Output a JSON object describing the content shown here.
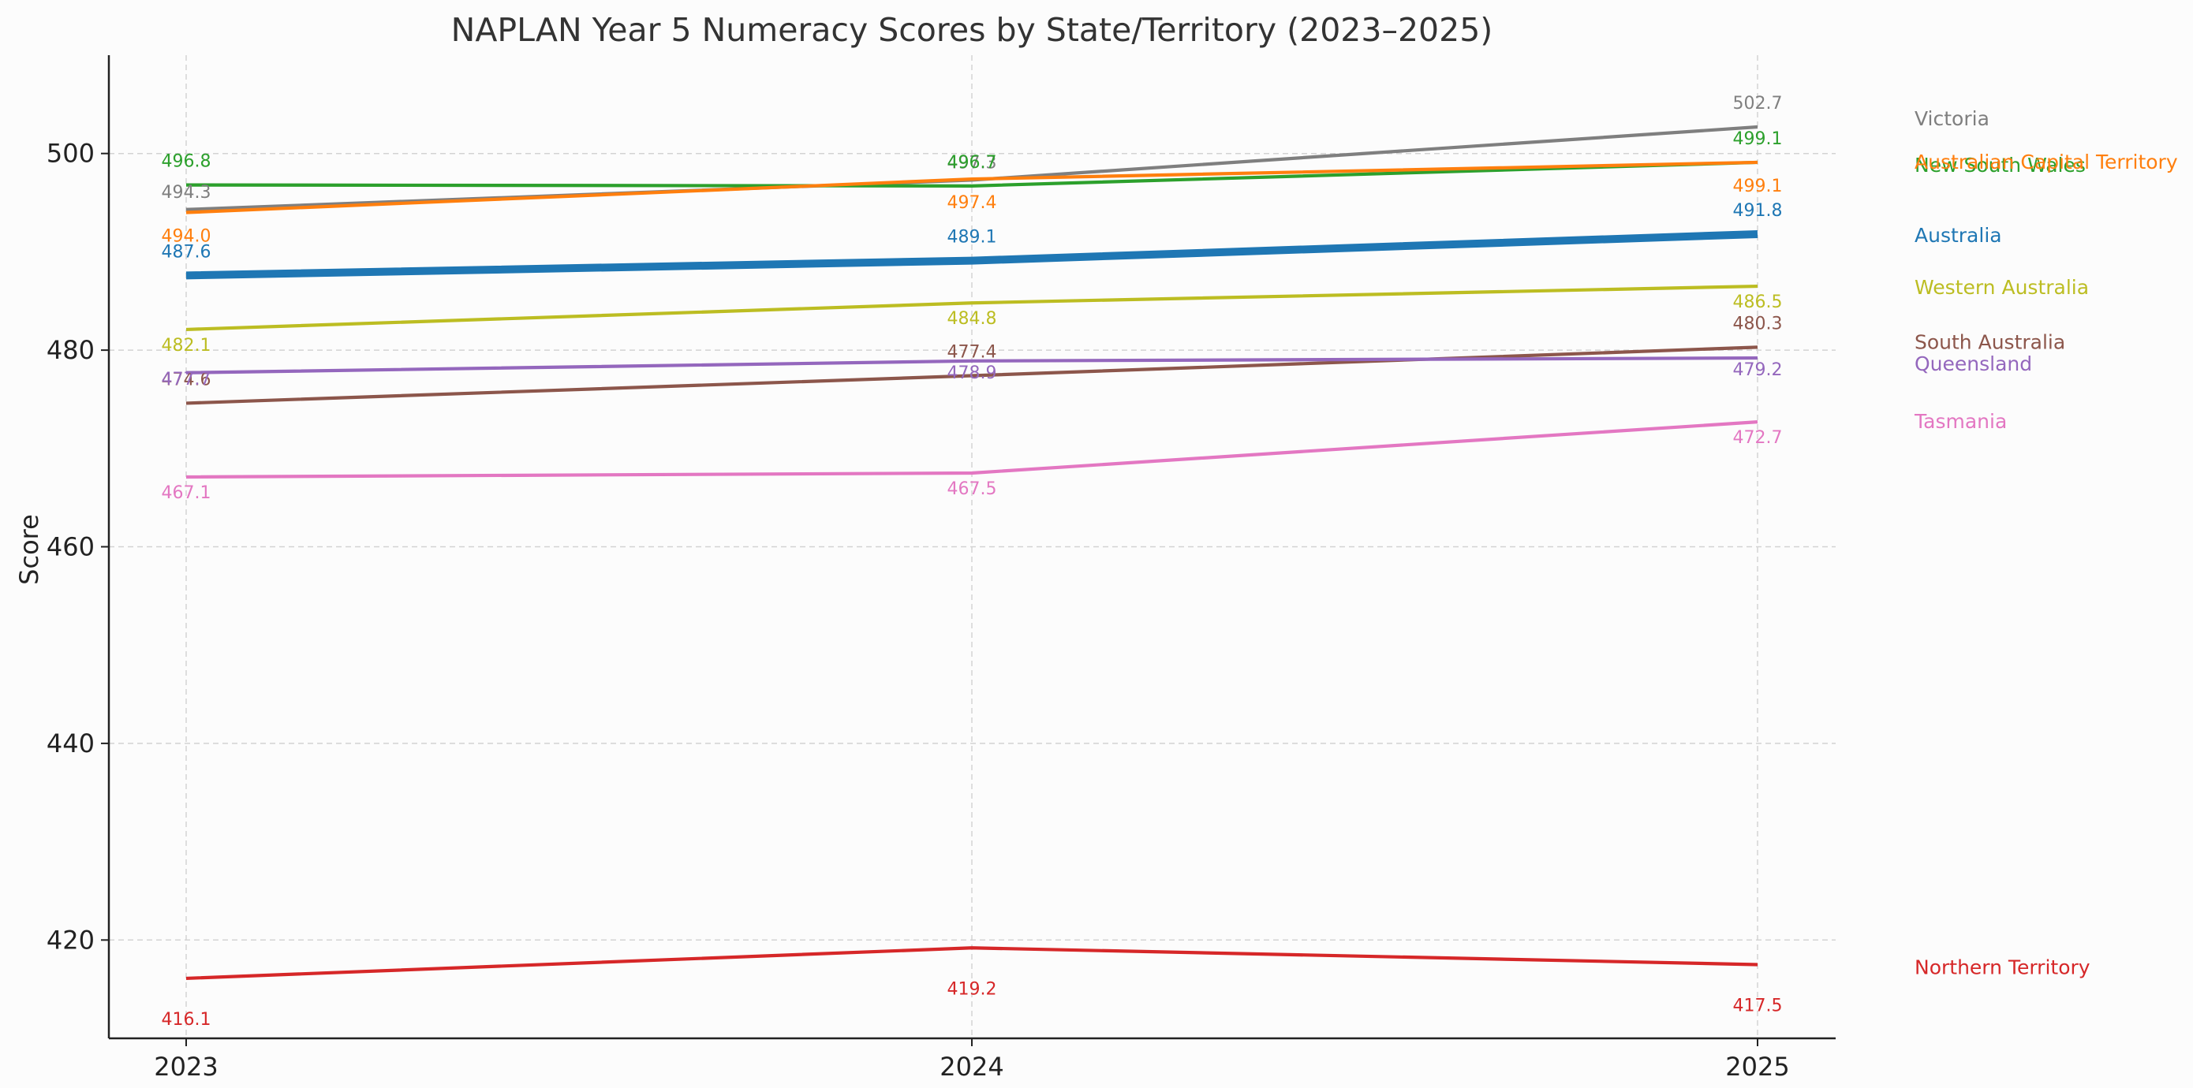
{
  "chart_data": {
    "type": "line",
    "title": "NAPLAN Year 5 Numeracy Scores by State/Territory (2023–2025)",
    "xlabel": "",
    "ylabel": "Score",
    "x": [
      "2023",
      "2024",
      "2025"
    ],
    "ylim": [
      410,
      510
    ],
    "yticks": [
      420,
      440,
      460,
      480,
      500
    ],
    "grid": true,
    "legend": "none (series names printed at the right end of each line)",
    "series": [
      {
        "name": "Victoria",
        "values": [
          494.3,
          497.3,
          502.7
        ],
        "color": "#7f7f7f",
        "emphasis": false
      },
      {
        "name": "New South Wales",
        "values": [
          496.8,
          496.7,
          499.1
        ],
        "color": "#2ca02c",
        "emphasis": false
      },
      {
        "name": "Australian Capital Territory",
        "values": [
          494.0,
          497.4,
          499.1
        ],
        "color": "#ff7f0e",
        "emphasis": false
      },
      {
        "name": "Australia",
        "values": [
          487.6,
          489.1,
          491.8
        ],
        "color": "#1f77b4",
        "emphasis": true
      },
      {
        "name": "Western Australia",
        "values": [
          482.1,
          484.8,
          486.5
        ],
        "color": "#bcbd22",
        "emphasis": false
      },
      {
        "name": "South Australia",
        "values": [
          474.6,
          477.4,
          480.3
        ],
        "color": "#8c564b",
        "emphasis": false
      },
      {
        "name": "Queensland",
        "values": [
          477.7,
          478.9,
          479.2
        ],
        "color": "#9467bd",
        "emphasis": false
      },
      {
        "name": "Tasmania",
        "values": [
          467.1,
          467.5,
          472.7
        ],
        "color": "#e377c2",
        "emphasis": false
      },
      {
        "name": "Northern Territory",
        "values": [
          416.1,
          419.2,
          417.5
        ],
        "color": "#d62728",
        "emphasis": false
      }
    ]
  }
}
